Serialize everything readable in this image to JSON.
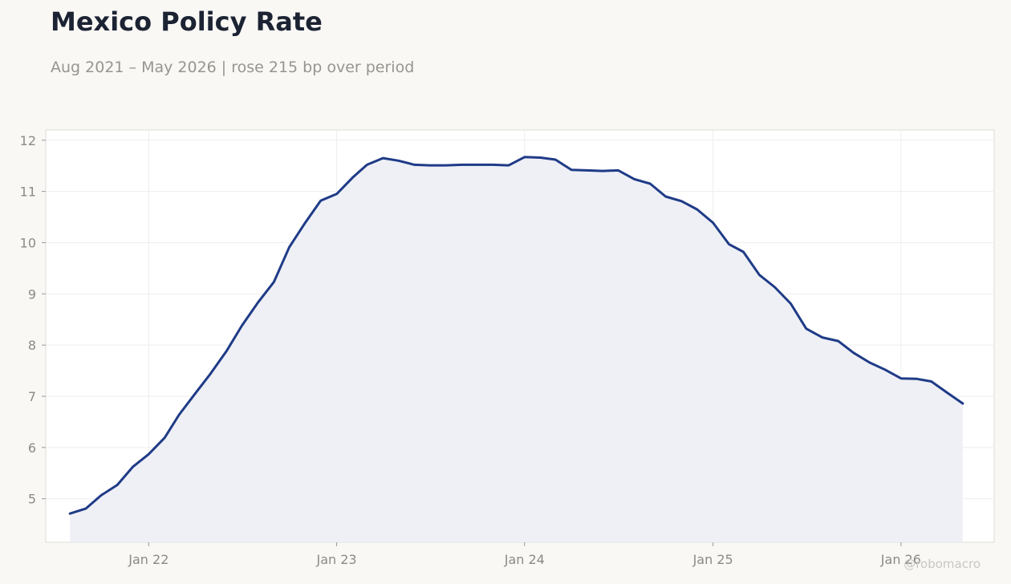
{
  "title": "Mexico Policy Rate",
  "subtitle": "Aug 2021 – May 2026 | rose 215 bp over period",
  "watermark": "@robomacro",
  "colors": {
    "line": "#1f3b87",
    "fill": "#eceef5",
    "background": "#f9f8f5",
    "plot_background": "#ffffff",
    "grid": "#eeeeee",
    "tick_text": "#8c8a85"
  },
  "chart_data": {
    "type": "area",
    "title": "Mexico Policy Rate",
    "subtitle": "Aug 2021 – May 2026 | rose 215 bp over period",
    "xlabel": "",
    "ylabel": "",
    "ylim": [
      4.15,
      12.2
    ],
    "xlim": [
      "2021-06-15",
      "2026-07-01"
    ],
    "grid": true,
    "legend": "none",
    "x_ticks": [
      "Jan 22",
      "Jan 23",
      "Jan 24",
      "Jan 25",
      "Jan 26"
    ],
    "x_tick_dates": [
      "2022-01-01",
      "2023-01-01",
      "2024-01-01",
      "2025-01-01",
      "2026-01-01"
    ],
    "y_ticks": [
      5,
      6,
      7,
      8,
      9,
      10,
      11,
      12
    ],
    "series": [
      {
        "x": [
          "2021-08",
          "2021-09",
          "2021-10",
          "2021-11",
          "2021-12",
          "2022-01",
          "2022-02",
          "2022-03",
          "2022-04",
          "2022-05",
          "2022-06",
          "2022-07",
          "2022-08",
          "2022-09",
          "2022-10",
          "2022-11",
          "2022-12",
          "2023-01",
          "2023-02",
          "2023-03",
          "2023-04",
          "2023-05",
          "2023-06",
          "2023-07",
          "2023-08",
          "2023-09",
          "2023-10",
          "2023-11",
          "2023-12",
          "2024-01",
          "2024-02",
          "2024-03",
          "2024-04",
          "2024-05",
          "2024-06",
          "2024-07",
          "2024-08",
          "2024-09",
          "2024-10",
          "2024-11",
          "2024-12",
          "2025-01",
          "2025-02",
          "2025-03",
          "2025-04",
          "2025-05",
          "2025-06",
          "2025-07",
          "2025-08",
          "2025-09",
          "2025-10",
          "2025-11",
          "2025-12",
          "2026-01",
          "2026-02",
          "2026-03",
          "2026-04",
          "2026-05"
        ],
        "values": [
          4.71,
          4.81,
          5.07,
          5.27,
          5.62,
          5.87,
          6.19,
          6.64,
          7.05,
          7.44,
          7.88,
          8.38,
          8.83,
          9.23,
          9.91,
          10.39,
          10.82,
          10.95,
          11.27,
          11.52,
          11.65,
          11.6,
          11.52,
          11.51,
          11.51,
          11.52,
          11.52,
          11.52,
          11.51,
          11.67,
          11.66,
          11.62,
          11.42,
          11.41,
          11.4,
          11.41,
          11.24,
          11.15,
          10.9,
          10.81,
          10.65,
          10.39,
          9.97,
          9.82,
          9.37,
          9.13,
          8.81,
          8.32,
          8.15,
          8.08,
          7.85,
          7.66,
          7.52,
          7.35,
          7.34,
          7.29,
          7.07,
          6.86
        ]
      }
    ]
  }
}
